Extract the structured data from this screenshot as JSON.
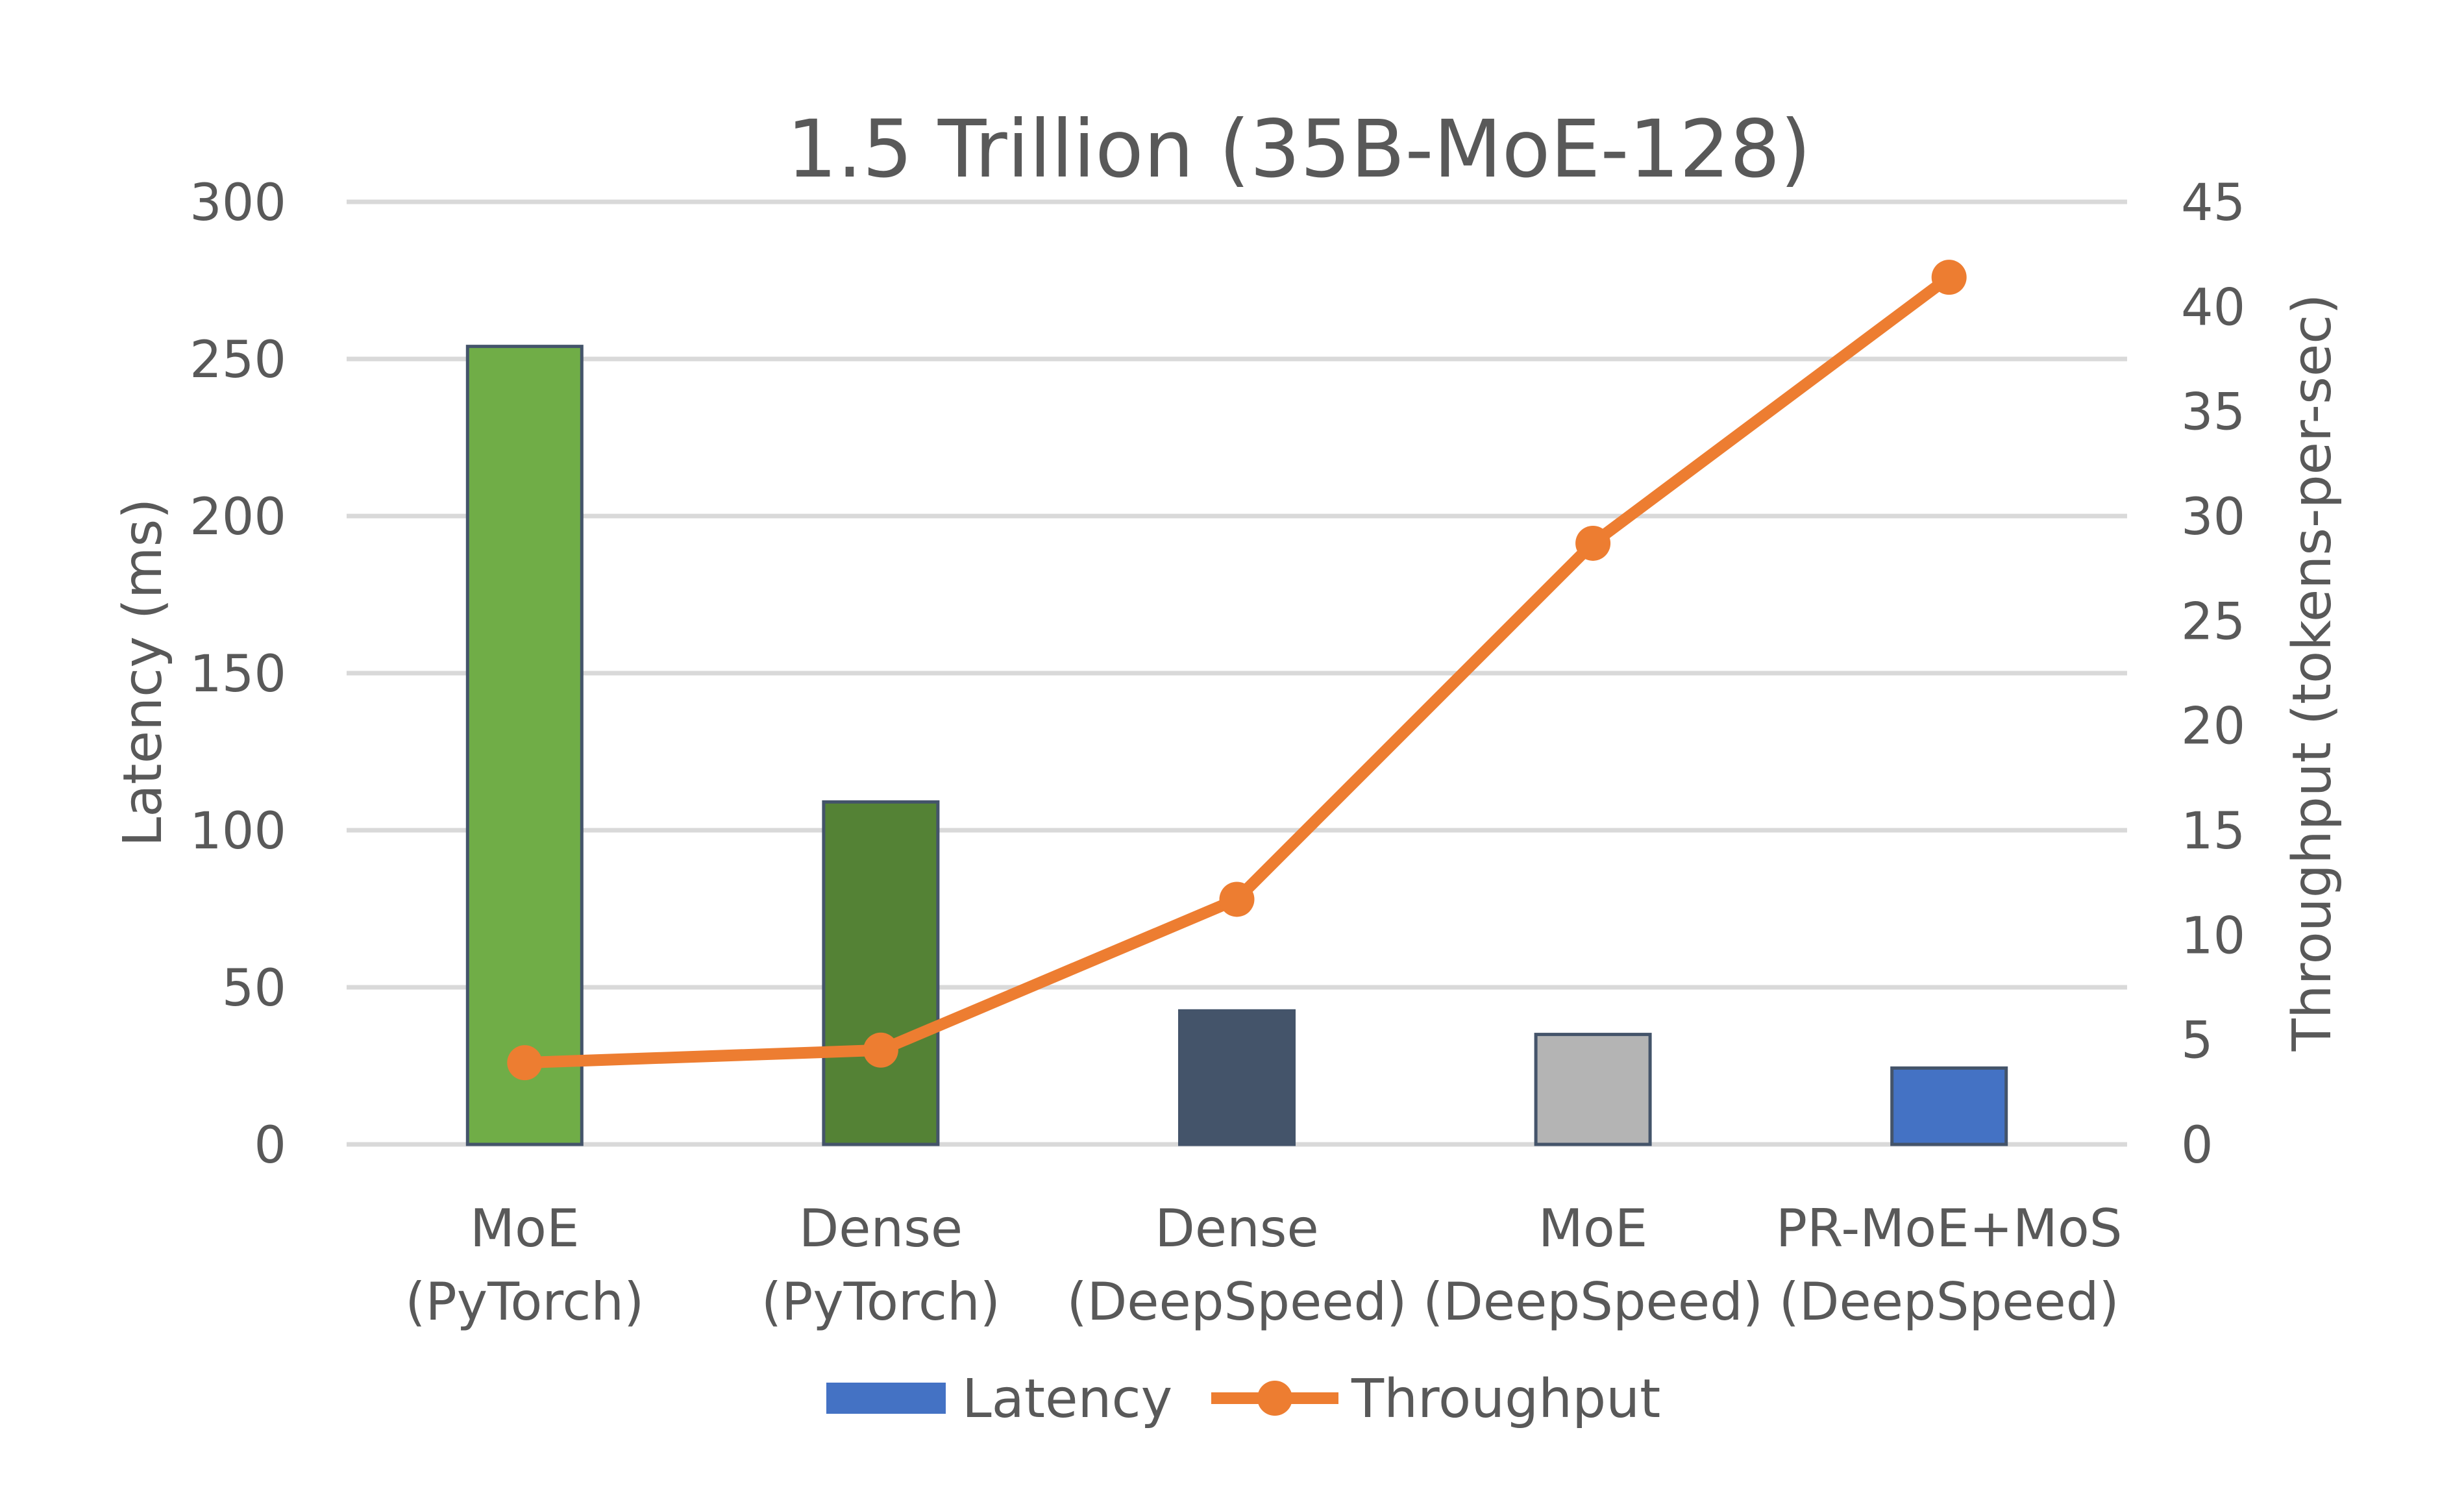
{
  "chart_data": {
    "type": "bar+line",
    "title": "1.5 Trillion (35B-MoE-128)",
    "categories": [
      [
        "MoE",
        "(PyTorch)"
      ],
      [
        "Dense",
        "(PyTorch)"
      ],
      [
        "Dense",
        "(DeepSpeed)"
      ],
      [
        "MoE",
        "(DeepSpeed)"
      ],
      [
        "PR-MoE+MoS",
        "(DeepSpeed)"
      ]
    ],
    "series": [
      {
        "name": "Latency",
        "type": "bar",
        "axis": "left",
        "values": [
          254,
          109,
          42.5,
          35,
          24.3
        ],
        "colors": [
          "#70AD47",
          "#548235",
          "#44546A",
          "#B4B4B4",
          "#4472C4"
        ],
        "legend_color": "#4472C4",
        "outline": "#44546A"
      },
      {
        "name": "Throughput",
        "type": "line",
        "axis": "right",
        "values": [
          3.9,
          4.5,
          11.7,
          28.7,
          41.4
        ],
        "color": "#ED7D31",
        "markers": true
      }
    ],
    "ylabel": "Latency (ms)",
    "ylabel_right": "Throughput  (tokens-per-sec)",
    "ylim": [
      0,
      300
    ],
    "yticks": [
      0,
      50,
      100,
      150,
      200,
      250,
      300
    ],
    "ylim_right": [
      0,
      45
    ],
    "yticks_right": [
      0,
      5,
      10,
      15,
      20,
      25,
      30,
      35,
      40,
      45
    ],
    "grid": true,
    "legend_position": "bottom"
  }
}
